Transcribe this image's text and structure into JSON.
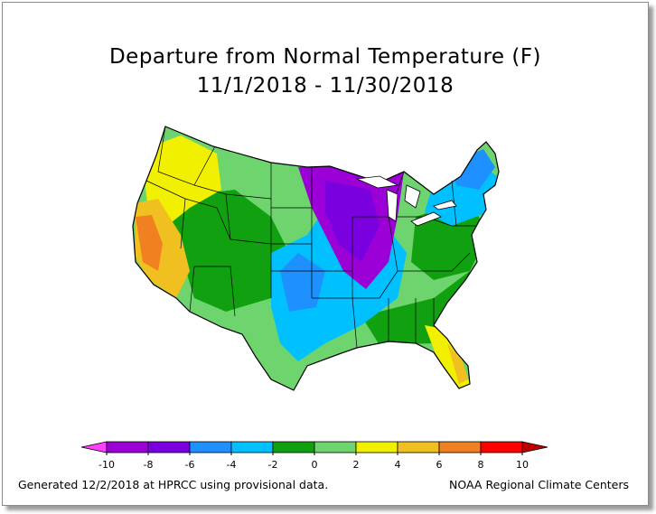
{
  "title": "Departure from Normal Temperature (F)",
  "date_range": "11/1/2018 - 11/30/2018",
  "legend": {
    "ticks": [
      "-10",
      "-8",
      "-6",
      "-4",
      "-2",
      "0",
      "2",
      "4",
      "6",
      "8",
      "10"
    ],
    "colors": [
      "#ff40ff",
      "#9b00d6",
      "#7a00e0",
      "#1e90ff",
      "#00c0ff",
      "#10a010",
      "#6ed46e",
      "#f0f000",
      "#f0c020",
      "#f08020",
      "#ff0000",
      "#c00000"
    ]
  },
  "footer": {
    "generated": "Generated 12/2/2018 at HPRCC using provisional data.",
    "source": "NOAA Regional Climate Centers"
  }
}
